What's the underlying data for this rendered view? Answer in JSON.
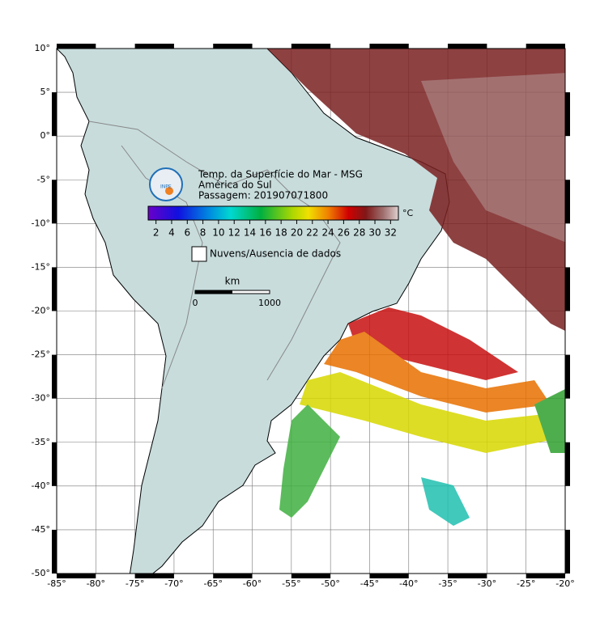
{
  "map": {
    "title": [
      "Temp. da Superfície do Mar - MSG",
      "América do Sul",
      "Passagem: 201907071800"
    ],
    "logo": "INPE",
    "xlim": [
      -85,
      -20
    ],
    "ylim": [
      -50,
      10
    ],
    "xticks": [
      {
        "value": -85,
        "label": "-85°"
      },
      {
        "value": -80,
        "label": "-80°"
      },
      {
        "value": -75,
        "label": "-75°"
      },
      {
        "value": -70,
        "label": "-70°"
      },
      {
        "value": -65,
        "label": "-65°"
      },
      {
        "value": -60,
        "label": "-60°"
      },
      {
        "value": -55,
        "label": "-55°"
      },
      {
        "value": -50,
        "label": "-50°"
      },
      {
        "value": -45,
        "label": "-45°"
      },
      {
        "value": -40,
        "label": "-40°"
      },
      {
        "value": -35,
        "label": "-35°"
      },
      {
        "value": -30,
        "label": "-30°"
      },
      {
        "value": -25,
        "label": "-25°"
      },
      {
        "value": -20,
        "label": "-20°"
      }
    ],
    "yticks": [
      {
        "value": 10,
        "label": "10°"
      },
      {
        "value": 5,
        "label": "5°"
      },
      {
        "value": 0,
        "label": "0°"
      },
      {
        "value": -5,
        "label": "-5°"
      },
      {
        "value": -10,
        "label": "-10°"
      },
      {
        "value": -15,
        "label": "-15°"
      },
      {
        "value": -20,
        "label": "-20°"
      },
      {
        "value": -25,
        "label": "-25°"
      },
      {
        "value": -30,
        "label": "-30°"
      },
      {
        "value": -35,
        "label": "-35°"
      },
      {
        "value": -40,
        "label": "-40°"
      },
      {
        "value": -45,
        "label": "-45°"
      },
      {
        "value": -50,
        "label": "-50°"
      }
    ],
    "grid": true,
    "colorbar": {
      "lim": [
        1,
        33
      ],
      "ticks": [
        2,
        4,
        6,
        8,
        10,
        12,
        14,
        16,
        18,
        20,
        22,
        24,
        26,
        28,
        30,
        32
      ],
      "unit": "°C"
    },
    "legend": "Nuvens/Ausencia de dados",
    "scale_bar": {
      "unit": "km",
      "start": "0",
      "end": "1000"
    }
  }
}
